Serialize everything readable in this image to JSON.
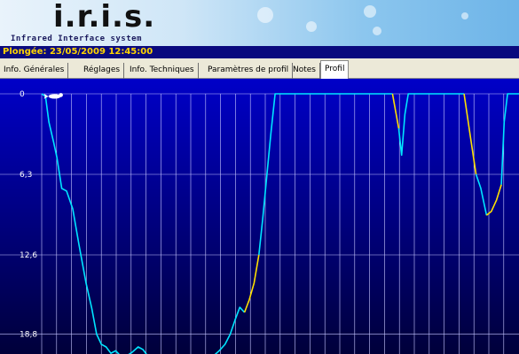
{
  "header": {
    "logo_text": "i.r.i.s.",
    "logo_subtitle": "Infrared Interface system"
  },
  "dive": {
    "label": "Plongée: 23/05/2009 12:45:00"
  },
  "tabs": [
    {
      "label": "Info. Générales",
      "active": false
    },
    {
      "label": "Réglages",
      "active": false
    },
    {
      "label": "Info. Techniques",
      "active": false
    },
    {
      "label": "Paramètres de profil",
      "active": false
    },
    {
      "label": "Notes",
      "active": false
    },
    {
      "label": "Profil",
      "active": true
    }
  ],
  "colors": {
    "plot_top": "#0000c8",
    "plot_bottom": "#00003a",
    "depth_line": "#00e5ff",
    "ascent_warning": "#ffe000",
    "grid": "#c8c8ff"
  },
  "chart_data": {
    "type": "line",
    "title": "",
    "xlabel": "",
    "ylabel": "",
    "y_inverted": true,
    "yticks": [
      "0",
      "6,3",
      "12,6",
      "18,8"
    ],
    "ylim": [
      0,
      20.5
    ],
    "xlim": [
      0,
      100
    ],
    "grid": true,
    "series": [
      {
        "color": "#00e5ff",
        "points": [
          [
            0,
            0
          ],
          [
            0.8,
            0.2
          ],
          [
            1.5,
            2.2
          ],
          [
            2.5,
            3.8
          ],
          [
            3.2,
            5
          ],
          [
            4.2,
            7.4
          ],
          [
            5.2,
            7.6
          ],
          [
            6.5,
            9
          ],
          [
            7.8,
            11.8
          ],
          [
            9.3,
            14.8
          ],
          [
            10.5,
            16.8
          ],
          [
            11.5,
            18.8
          ],
          [
            12.5,
            19.6
          ],
          [
            13.5,
            19.8
          ],
          [
            14.5,
            20.3
          ],
          [
            15.5,
            20.1
          ],
          [
            16.5,
            20.5
          ],
          [
            17.8,
            20.5
          ],
          [
            19,
            20.2
          ],
          [
            20.2,
            19.8
          ],
          [
            21.2,
            20
          ],
          [
            22.2,
            20.5
          ],
          [
            36,
            20.5
          ],
          [
            37.2,
            20.1
          ],
          [
            38.4,
            19.6
          ],
          [
            39.5,
            18.8
          ],
          [
            40.5,
            17.7
          ],
          [
            41.5,
            16.7
          ],
          [
            42.5,
            17.1
          ]
        ]
      },
      {
        "color": "#ffe000",
        "points": [
          [
            42.5,
            17.1
          ],
          [
            43.5,
            16.1
          ],
          [
            44.5,
            14.8
          ],
          [
            45.5,
            12.6
          ]
        ]
      },
      {
        "color": "#00e5ff",
        "points": [
          [
            45.5,
            12.6
          ],
          [
            46.3,
            9.8
          ],
          [
            47.2,
            6.3
          ],
          [
            48,
            3.2
          ],
          [
            48.9,
            0
          ],
          [
            73.5,
            0
          ]
        ]
      },
      {
        "color": "#ffe000",
        "points": [
          [
            73.5,
            0
          ],
          [
            74.8,
            2.7
          ]
        ]
      },
      {
        "color": "#00e5ff",
        "points": [
          [
            74.8,
            2.7
          ],
          [
            75.4,
            4.8
          ],
          [
            76.1,
            1.6
          ],
          [
            76.8,
            0
          ],
          [
            88.5,
            0
          ]
        ]
      },
      {
        "color": "#ffe000",
        "points": [
          [
            88.5,
            0
          ],
          [
            89.8,
            3.3
          ],
          [
            91,
            6.3
          ]
        ]
      },
      {
        "color": "#00e5ff",
        "points": [
          [
            91,
            6.3
          ],
          [
            92,
            7.4
          ],
          [
            93.2,
            9.5
          ]
        ]
      },
      {
        "color": "#ffe000",
        "points": [
          [
            93.2,
            9.5
          ],
          [
            94.2,
            9.2
          ],
          [
            95.3,
            8.3
          ],
          [
            96.3,
            7.1
          ]
        ]
      },
      {
        "color": "#00e5ff",
        "points": [
          [
            96.3,
            7.1
          ],
          [
            96.9,
            2.2
          ],
          [
            97.6,
            0
          ],
          [
            100,
            0
          ]
        ]
      }
    ],
    "markers": [
      {
        "name": "diver-icon",
        "x": 1.6,
        "y": 0.2
      }
    ]
  }
}
